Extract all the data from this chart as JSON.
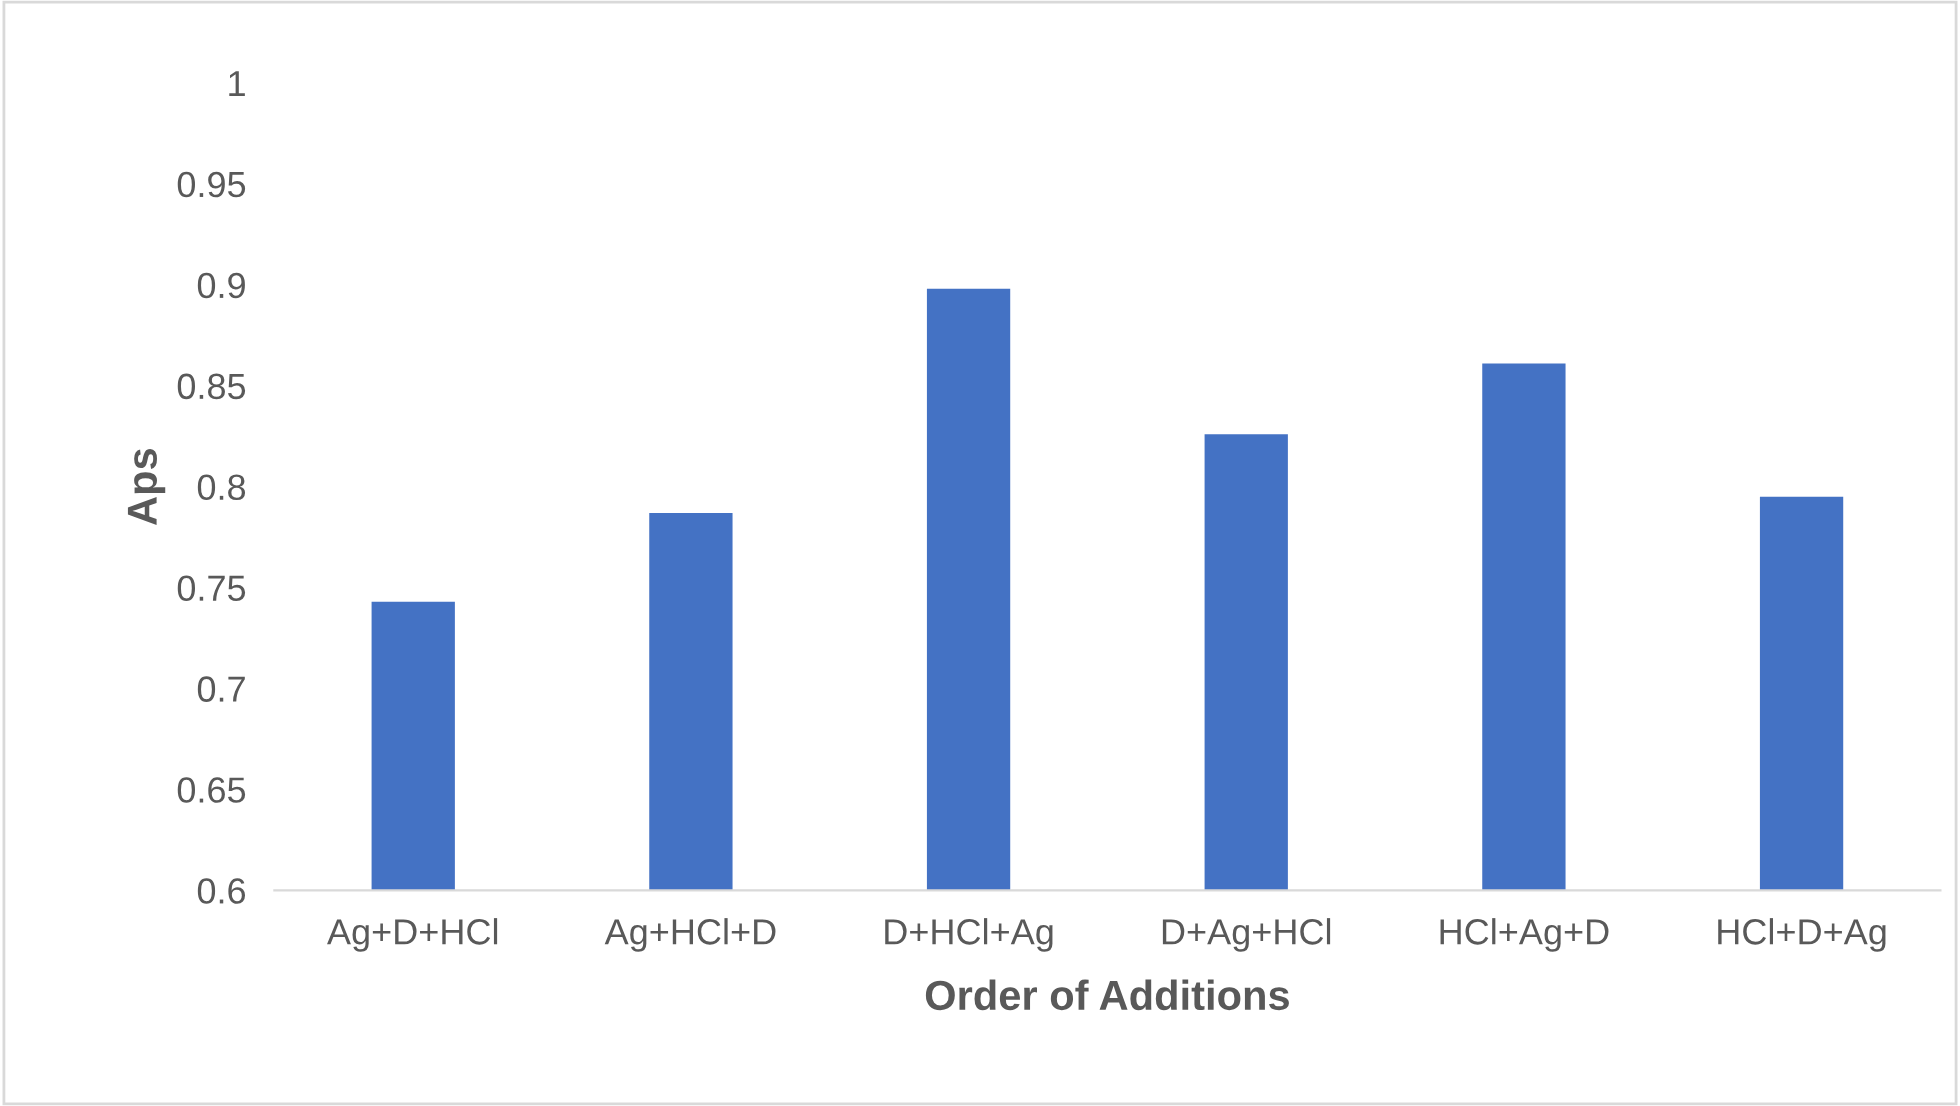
{
  "chart_data": {
    "type": "bar",
    "xlabel": "Order of Additions",
    "ylabel": "Aps",
    "categories": [
      "Ag+D+HCl",
      "Ag+HCl+D",
      "D+HCl+Ag",
      "D+Ag+HCl",
      "HCl+Ag+D",
      "HCl+D+Ag"
    ],
    "values": [
      0.743,
      0.787,
      0.898,
      0.826,
      0.861,
      0.795
    ],
    "color": "#4472c4",
    "ylim": [
      0.6,
      1
    ],
    "yticks": [
      0.6,
      0.65,
      0.7,
      0.75,
      0.8,
      0.85,
      0.9,
      0.95,
      1
    ],
    "grid": false
  }
}
